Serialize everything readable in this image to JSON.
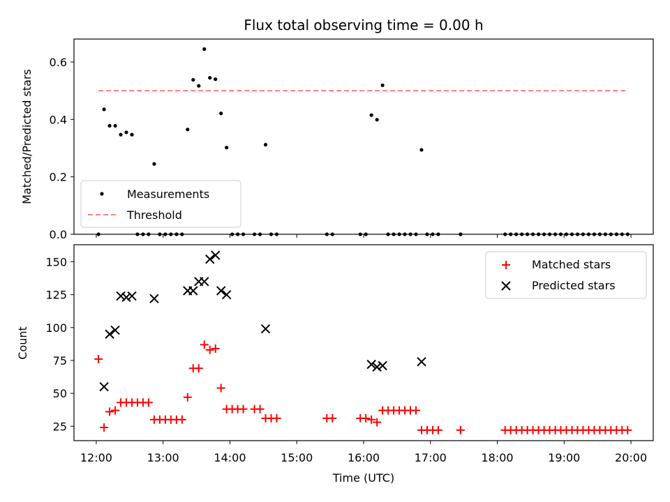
{
  "chart_data": [
    {
      "type": "scatter",
      "title": "Flux total observing time = 0.00 h",
      "xlabel": "",
      "ylabel": "Matched/Predicted stars",
      "xlim": [
        "11:40",
        "20:20"
      ],
      "ylim": [
        0,
        0.68
      ],
      "yticks": [
        0.0,
        0.2,
        0.4,
        0.6
      ],
      "ytick_labels": [
        "0.0",
        "0.2",
        "0.4",
        "0.6"
      ],
      "legend": {
        "placement": "lower-left",
        "entries": [
          "Measurements",
          "Threshold"
        ]
      },
      "series": [
        {
          "name": "Measurements",
          "marker": "dot",
          "color": "#000000",
          "points": [
            [
              "12:02",
              0.0
            ],
            [
              "12:07",
              0.435
            ],
            [
              "12:12",
              0.378
            ],
            [
              "12:17",
              0.378
            ],
            [
              "12:22",
              0.347
            ],
            [
              "12:27",
              0.355
            ],
            [
              "12:32",
              0.347
            ],
            [
              "12:37",
              0.0
            ],
            [
              "12:42",
              0.0
            ],
            [
              "12:47",
              0.0
            ],
            [
              "12:52",
              0.245
            ],
            [
              "12:57",
              0.0
            ],
            [
              "13:02",
              0.0
            ],
            [
              "13:07",
              0.0
            ],
            [
              "13:12",
              0.0
            ],
            [
              "13:17",
              0.0
            ],
            [
              "13:22",
              0.365
            ],
            [
              "13:27",
              0.538
            ],
            [
              "13:32",
              0.517
            ],
            [
              "13:37",
              0.645
            ],
            [
              "13:42",
              0.545
            ],
            [
              "13:47",
              0.54
            ],
            [
              "13:52",
              0.421
            ],
            [
              "13:57",
              0.302
            ],
            [
              "14:02",
              0.0
            ],
            [
              "14:07",
              0.0
            ],
            [
              "14:12",
              0.0
            ],
            [
              "14:22",
              0.0
            ],
            [
              "14:27",
              0.0
            ],
            [
              "14:32",
              0.312
            ],
            [
              "14:37",
              0.0
            ],
            [
              "14:42",
              0.0
            ],
            [
              "15:27",
              0.0
            ],
            [
              "15:32",
              0.0
            ],
            [
              "15:57",
              0.0
            ],
            [
              "16:02",
              0.0
            ],
            [
              "16:07",
              0.415
            ],
            [
              "16:12",
              0.399
            ],
            [
              "16:17",
              0.519
            ],
            [
              "16:22",
              0.0
            ],
            [
              "16:27",
              0.0
            ],
            [
              "16:32",
              0.0
            ],
            [
              "16:37",
              0.0
            ],
            [
              "16:42",
              0.0
            ],
            [
              "16:47",
              0.0
            ],
            [
              "16:52",
              0.294
            ],
            [
              "16:57",
              0.0
            ],
            [
              "17:02",
              0.0
            ],
            [
              "17:07",
              0.0
            ],
            [
              "17:27",
              0.0
            ],
            [
              "18:07",
              0.0
            ],
            [
              "18:12",
              0.0
            ],
            [
              "18:17",
              0.0
            ],
            [
              "18:22",
              0.0
            ],
            [
              "18:27",
              0.0
            ],
            [
              "18:32",
              0.0
            ],
            [
              "18:37",
              0.0
            ],
            [
              "18:42",
              0.0
            ],
            [
              "18:47",
              0.0
            ],
            [
              "18:52",
              0.0
            ],
            [
              "18:57",
              0.0
            ],
            [
              "19:02",
              0.0
            ],
            [
              "19:07",
              0.0
            ],
            [
              "19:12",
              0.0
            ],
            [
              "19:17",
              0.0
            ],
            [
              "19:22",
              0.0
            ],
            [
              "19:27",
              0.0
            ],
            [
              "19:32",
              0.0
            ],
            [
              "19:37",
              0.0
            ],
            [
              "19:42",
              0.0
            ],
            [
              "19:47",
              0.0
            ],
            [
              "19:52",
              0.0
            ],
            [
              "19:57",
              0.0
            ]
          ]
        },
        {
          "name": "Threshold",
          "marker": "dashed-line",
          "color": "#ff7f7f",
          "points": [
            [
              "12:02",
              0.5
            ],
            [
              "19:57",
              0.5
            ]
          ]
        }
      ]
    },
    {
      "type": "scatter",
      "title": "",
      "xlabel": "Time (UTC)",
      "ylabel": "Count",
      "xlim": [
        "11:40",
        "20:20"
      ],
      "ylim": [
        14,
        163
      ],
      "yticks": [
        25,
        50,
        75,
        100,
        125,
        150
      ],
      "ytick_labels": [
        "25",
        "50",
        "75",
        "100",
        "125",
        "150"
      ],
      "xticks": [
        "12:00",
        "13:00",
        "14:00",
        "15:00",
        "16:00",
        "17:00",
        "18:00",
        "19:00",
        "20:00"
      ],
      "legend": {
        "placement": "top-right",
        "entries": [
          "Matched stars",
          "Predicted stars"
        ]
      },
      "series": [
        {
          "name": "Matched stars",
          "marker": "plus",
          "color": "#ff0000",
          "points": [
            [
              "12:02",
              76
            ],
            [
              "12:07",
              24
            ],
            [
              "12:12",
              36
            ],
            [
              "12:17",
              37
            ],
            [
              "12:22",
              43
            ],
            [
              "12:27",
              43
            ],
            [
              "12:32",
              43
            ],
            [
              "12:37",
              43
            ],
            [
              "12:42",
              43
            ],
            [
              "12:47",
              43
            ],
            [
              "12:52",
              30
            ],
            [
              "12:57",
              30
            ],
            [
              "13:02",
              30
            ],
            [
              "13:07",
              30
            ],
            [
              "13:12",
              30
            ],
            [
              "13:17",
              30
            ],
            [
              "13:22",
              47
            ],
            [
              "13:27",
              69
            ],
            [
              "13:32",
              69
            ],
            [
              "13:37",
              87
            ],
            [
              "13:42",
              83
            ],
            [
              "13:47",
              84
            ],
            [
              "13:52",
              54
            ],
            [
              "13:57",
              38
            ],
            [
              "14:02",
              38
            ],
            [
              "14:07",
              38
            ],
            [
              "14:12",
              38
            ],
            [
              "14:22",
              38
            ],
            [
              "14:27",
              38
            ],
            [
              "14:32",
              31
            ],
            [
              "14:37",
              31
            ],
            [
              "14:42",
              31
            ],
            [
              "15:27",
              31
            ],
            [
              "15:32",
              31
            ],
            [
              "15:57",
              31
            ],
            [
              "16:02",
              31
            ],
            [
              "16:07",
              30
            ],
            [
              "16:12",
              28
            ],
            [
              "16:17",
              37
            ],
            [
              "16:22",
              37
            ],
            [
              "16:27",
              37
            ],
            [
              "16:32",
              37
            ],
            [
              "16:37",
              37
            ],
            [
              "16:42",
              37
            ],
            [
              "16:47",
              37
            ],
            [
              "16:52",
              22
            ],
            [
              "16:57",
              22
            ],
            [
              "17:02",
              22
            ],
            [
              "17:07",
              22
            ],
            [
              "17:27",
              22
            ],
            [
              "18:07",
              22
            ],
            [
              "18:12",
              22
            ],
            [
              "18:17",
              22
            ],
            [
              "18:22",
              22
            ],
            [
              "18:27",
              22
            ],
            [
              "18:32",
              22
            ],
            [
              "18:37",
              22
            ],
            [
              "18:42",
              22
            ],
            [
              "18:47",
              22
            ],
            [
              "18:52",
              22
            ],
            [
              "18:57",
              22
            ],
            [
              "19:02",
              22
            ],
            [
              "19:07",
              22
            ],
            [
              "19:12",
              22
            ],
            [
              "19:17",
              22
            ],
            [
              "19:22",
              22
            ],
            [
              "19:27",
              22
            ],
            [
              "19:32",
              22
            ],
            [
              "19:37",
              22
            ],
            [
              "19:42",
              22
            ],
            [
              "19:47",
              22
            ],
            [
              "19:52",
              22
            ],
            [
              "19:57",
              22
            ]
          ]
        },
        {
          "name": "Predicted stars",
          "marker": "x",
          "color": "#000000",
          "points": [
            [
              "12:07",
              55
            ],
            [
              "12:12",
              95
            ],
            [
              "12:17",
              98
            ],
            [
              "12:22",
              124
            ],
            [
              "12:27",
              123
            ],
            [
              "12:32",
              124
            ],
            [
              "12:52",
              122
            ],
            [
              "13:22",
              128
            ],
            [
              "13:27",
              128
            ],
            [
              "13:32",
              135
            ],
            [
              "13:37",
              135
            ],
            [
              "13:42",
              152
            ],
            [
              "13:47",
              155
            ],
            [
              "13:52",
              128
            ],
            [
              "13:57",
              125
            ],
            [
              "14:32",
              99
            ],
            [
              "16:07",
              72
            ],
            [
              "16:12",
              70
            ],
            [
              "16:17",
              71
            ],
            [
              "16:52",
              74
            ]
          ]
        }
      ]
    }
  ]
}
